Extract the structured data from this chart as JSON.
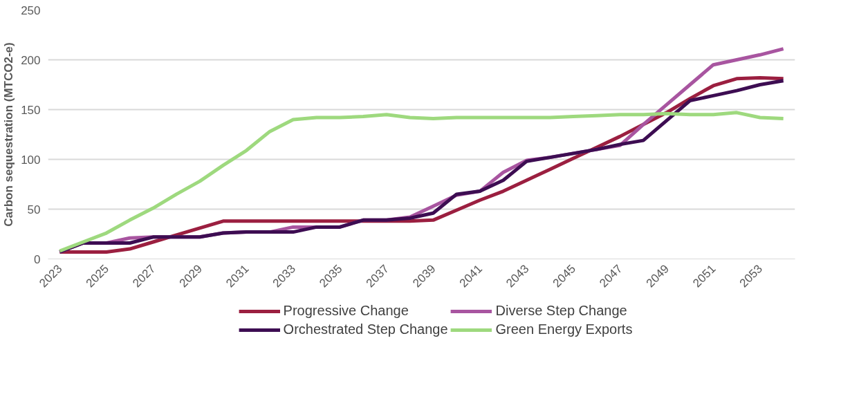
{
  "chart_data": {
    "type": "line",
    "ylabel": "Carbon sequestration (MTCO2-e)",
    "categories": [
      "2023",
      null,
      "2025",
      null,
      "2027",
      null,
      "2029",
      null,
      "2031",
      null,
      "2033",
      null,
      "2035",
      null,
      "2037",
      null,
      "2039",
      null,
      "2041",
      null,
      "2043",
      null,
      "2045",
      null,
      "2047",
      null,
      "2049",
      null,
      "2051",
      null,
      "2053",
      null
    ],
    "ylim": [
      0,
      250
    ],
    "yticks": [
      0,
      50,
      100,
      150,
      200,
      250
    ],
    "grid": "y",
    "legend": "bottom",
    "line_style": "solid",
    "marker": "none",
    "series": [
      {
        "name": "Progressive Change",
        "color": "#9b1f40",
        "values": [
          7,
          7,
          7,
          10,
          17,
          24,
          31,
          38,
          38,
          38,
          38,
          38,
          38,
          38,
          38,
          38,
          39,
          49,
          59,
          68,
          79,
          90,
          101,
          112,
          123,
          135,
          147,
          161,
          174,
          181,
          182,
          181
        ]
      },
      {
        "name": "Diverse Step Change",
        "color": "#a855a0",
        "values": [
          7,
          16,
          16,
          21,
          22,
          22,
          22,
          26,
          27,
          27,
          32,
          32,
          32,
          39,
          39,
          42,
          53,
          64,
          68,
          87,
          99,
          102,
          106,
          110,
          114,
          135,
          155,
          175,
          195,
          200,
          205,
          211
        ]
      },
      {
        "name": "Orchestrated Step Change",
        "color": "#3d0d52",
        "values": [
          7,
          16,
          16,
          16,
          22,
          22,
          22,
          26,
          27,
          27,
          27,
          32,
          32,
          39,
          39,
          41,
          46,
          65,
          68,
          79,
          98,
          102,
          106,
          110,
          115,
          119,
          139,
          159,
          164,
          169,
          175,
          179
        ]
      },
      {
        "name": "Green Energy Exports",
        "color": "#9ed97e",
        "values": [
          8,
          17,
          26,
          39,
          51,
          65,
          78,
          94,
          109,
          128,
          140,
          142,
          142,
          143,
          145,
          142,
          141,
          142,
          142,
          142,
          142,
          142,
          143,
          144,
          145,
          145,
          146,
          145,
          145,
          147,
          142,
          141
        ]
      }
    ]
  }
}
